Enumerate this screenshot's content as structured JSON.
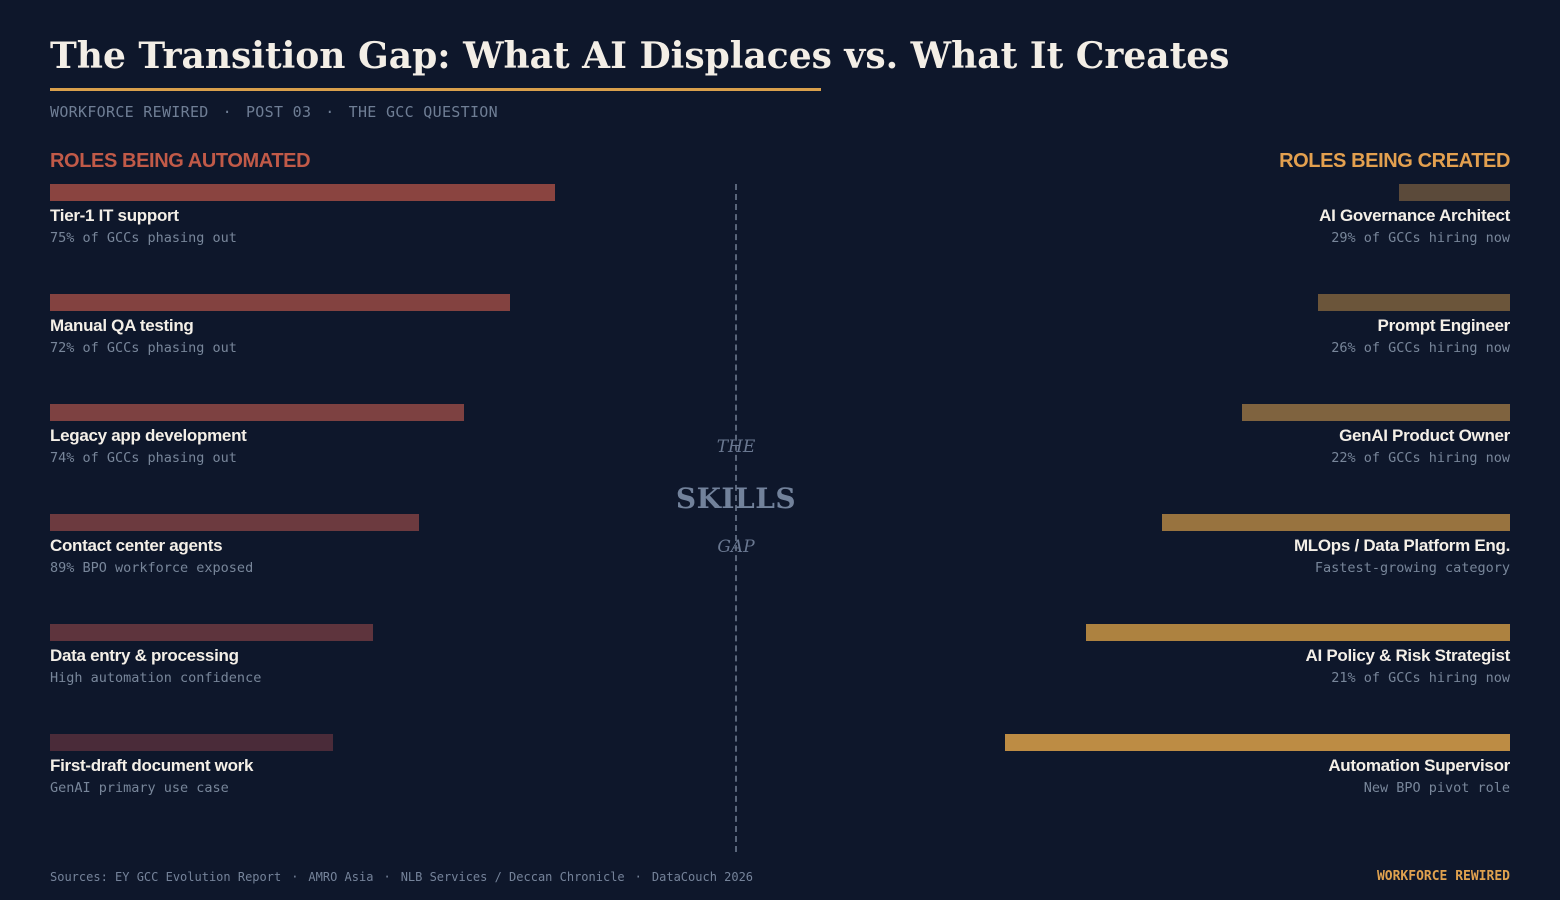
{
  "title": "The Transition Gap: What AI Displaces vs. What It Creates",
  "subtitle": {
    "series": "WORKFORCE REWIRED",
    "separator": "·",
    "post": "POST 03",
    "topic": "THE GCC QUESTION"
  },
  "divider_label": {
    "top": "THE",
    "middle": "SKILLS",
    "bottom": "GAP"
  },
  "chart_data": {
    "type": "bar",
    "title": "The Transition Gap: What AI Displaces vs. What It Creates",
    "max_value": 100,
    "left": {
      "heading": "ROLES BEING AUTOMATED",
      "direction": "grows rightward from left edge",
      "colors": [
        "#8a4440",
        "#834240",
        "#7d4141",
        "#6c3a3f",
        "#5e343d",
        "#4a2b39"
      ],
      "rows": [
        {
          "label": "Tier-1 IT support",
          "note": "75% of GCCs phasing out",
          "value": 100
        },
        {
          "label": "Manual QA testing",
          "note": "72% of GCCs phasing out",
          "value": 91
        },
        {
          "label": "Legacy app development",
          "note": "74% of GCCs phasing out",
          "value": 82
        },
        {
          "label": "Contact center agents",
          "note": "89% BPO workforce exposed",
          "value": 73
        },
        {
          "label": "Data entry & processing",
          "note": "High automation confidence",
          "value": 64
        },
        {
          "label": "First-draft document work",
          "note": "GenAI primary use case",
          "value": 56
        }
      ]
    },
    "right": {
      "heading": "ROLES BEING CREATED",
      "direction": "grows leftward from right edge",
      "colors": [
        "#5b4a3a",
        "#6b553a",
        "#7f633f",
        "#98733f",
        "#ad8240",
        "#bd8c44"
      ],
      "rows": [
        {
          "label": "AI Governance Architect",
          "note": "29% of GCCs hiring now",
          "value": 22
        },
        {
          "label": "Prompt Engineer",
          "note": "26% of GCCs hiring now",
          "value": 38
        },
        {
          "label": "GenAI Product Owner",
          "note": "22% of GCCs hiring now",
          "value": 53
        },
        {
          "label": "MLOps / Data Platform Eng.",
          "note": "Fastest-growing category",
          "value": 69
        },
        {
          "label": "AI Policy & Risk Strategist",
          "note": "21% of GCCs hiring now",
          "value": 84
        },
        {
          "label": "Automation Supervisor",
          "note": "New BPO pivot role",
          "value": 100
        }
      ]
    }
  },
  "footer": {
    "sources": [
      "Sources: EY GCC Evolution Report",
      "AMRO Asia",
      "NLB Services / Deccan Chronicle",
      "DataCouch 2026"
    ],
    "separator": "·",
    "brand": "WORKFORCE REWIRED"
  }
}
